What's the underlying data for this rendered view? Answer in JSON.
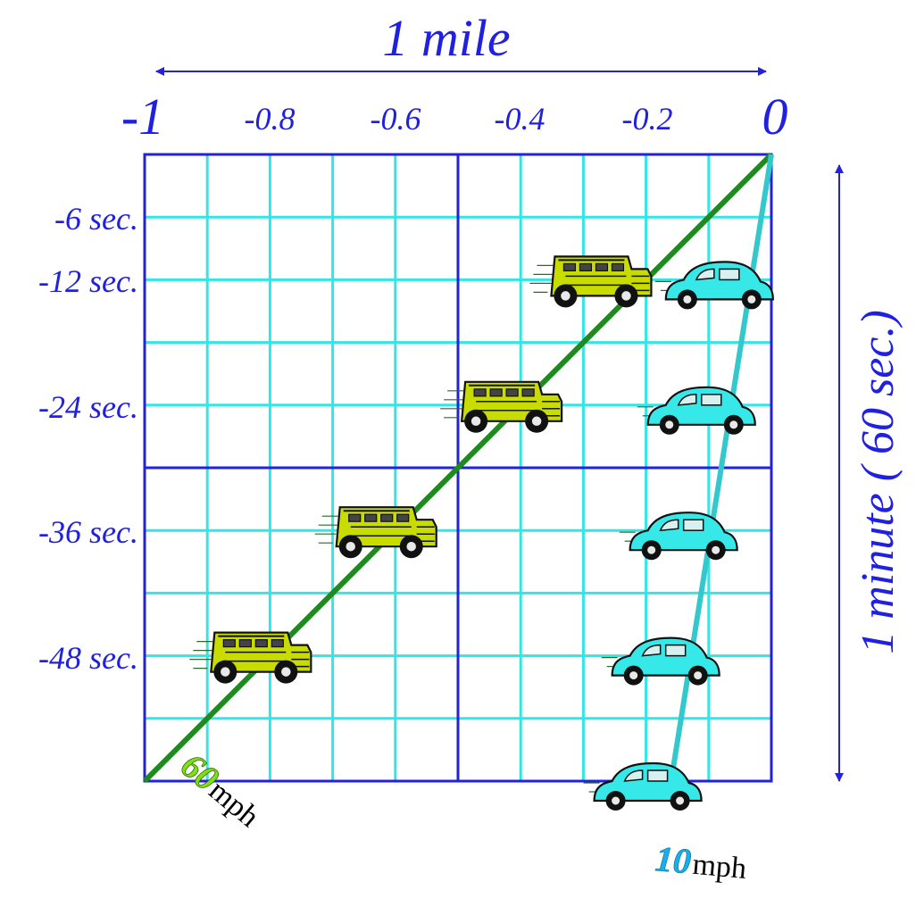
{
  "chart_data": {
    "type": "line",
    "title": "1 mile",
    "ylabel": "1 minute ( 60 sec.)",
    "x_ticks": [
      "-1",
      "-0.8",
      "-0.6",
      "-0.4",
      "-0.2",
      "0"
    ],
    "y_ticks": [
      "-6 sec.",
      "-12 sec.",
      "-24 sec.",
      "-36 sec.",
      "-48 sec."
    ],
    "xlim": [
      -1,
      0
    ],
    "ylim": [
      -60,
      0
    ],
    "series": [
      {
        "speed_number": "60",
        "speed_unit": "mph",
        "x": [
          -1,
          0
        ],
        "y": [
          -60,
          0
        ],
        "vehicle": "truck-icon",
        "vehicle_points": [
          {
            "x": -0.2857,
            "y": -12
          },
          {
            "x": -0.4286,
            "y": -24
          },
          {
            "x": -0.6286,
            "y": -36
          },
          {
            "x": -0.8286,
            "y": -48
          }
        ]
      },
      {
        "speed_number": "10",
        "speed_unit": "mph",
        "x": [
          -0.16,
          0
        ],
        "y": [
          -60,
          0
        ],
        "vehicle": "car-icon",
        "vehicle_points": [
          {
            "x": -0.0857,
            "y": -12
          },
          {
            "x": -0.1143,
            "y": -24
          },
          {
            "x": -0.1429,
            "y": -36
          },
          {
            "x": -0.1714,
            "y": -48
          },
          {
            "x": -0.2,
            "y": -60
          }
        ]
      }
    ],
    "colors": {
      "frame": "#2222dd",
      "grid": "#33e6e6",
      "label": "#2020e0",
      "series_60": "#1f8a1f",
      "series_10": "#33c8cc",
      "speed_60_text": "#7fe01a",
      "speed_10_text": "#19aee8",
      "truck_body": "#c8dc00",
      "car_body": "#37e8e8"
    },
    "grid": true
  }
}
